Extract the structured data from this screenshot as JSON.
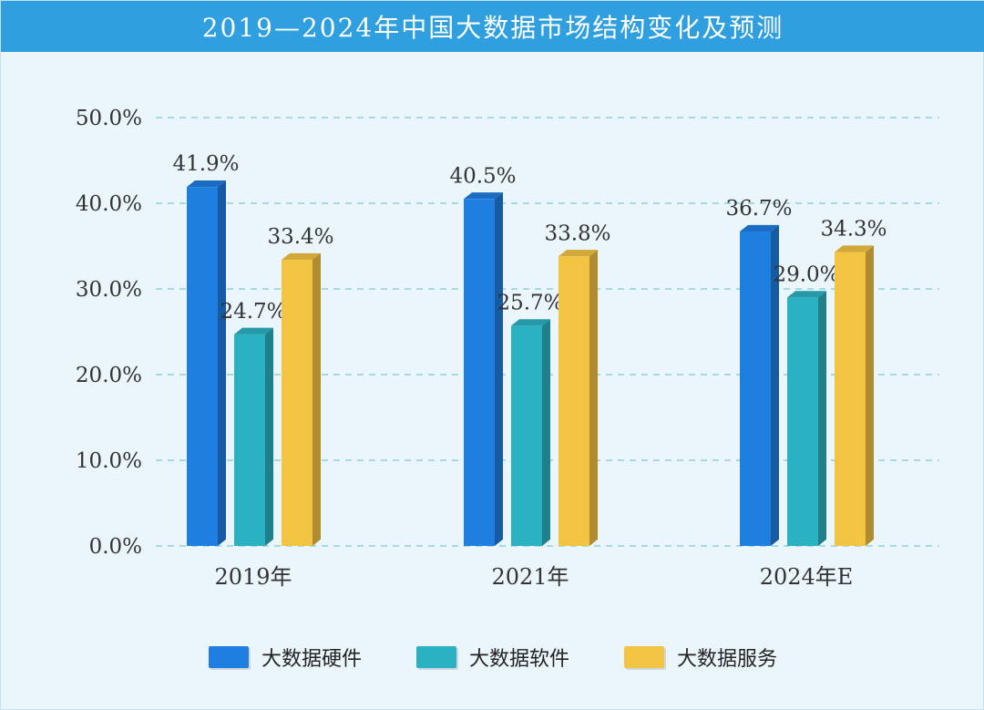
{
  "chart_data": {
    "type": "bar",
    "title": "2019—2024年中国大数据市场结构变化及预测",
    "categories": [
      "2019年",
      "2021年",
      "2024年E"
    ],
    "series": [
      {
        "name": "大数据硬件",
        "values": [
          41.9,
          40.5,
          36.7
        ],
        "labels": [
          "41.9%",
          "40.5%",
          "36.7%"
        ],
        "color": "#1f7fe0"
      },
      {
        "name": "大数据软件",
        "values": [
          24.7,
          25.7,
          29.0
        ],
        "labels": [
          "24.7%",
          "25.7%",
          "29.0%"
        ],
        "color": "#2bb2c2"
      },
      {
        "name": "大数据服务",
        "values": [
          33.4,
          33.8,
          34.3
        ],
        "labels": [
          "33.4%",
          "33.8%",
          "34.3%"
        ],
        "color": "#f3c342"
      }
    ],
    "ylim": [
      0,
      50
    ],
    "yticks": [
      "0.0%",
      "10.0%",
      "20.0%",
      "30.0%",
      "40.0%",
      "50.0%"
    ],
    "grid": true,
    "legend_position": "bottom"
  },
  "colors": {
    "title_bar": "#2f9fe0",
    "background": "#eaf6fb",
    "gridline": "#8fd0d6"
  }
}
